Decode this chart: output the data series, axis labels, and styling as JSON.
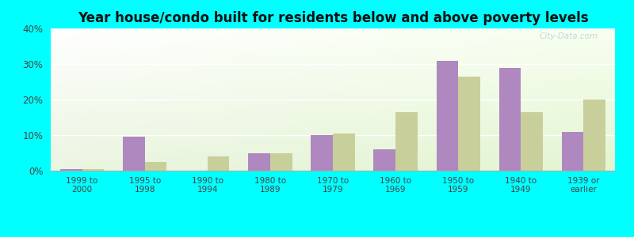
{
  "title": "Year house/condo built for residents below and above poverty levels",
  "categories": [
    "1999 to\n2000",
    "1995 to\n1998",
    "1990 to\n1994",
    "1980 to\n1989",
    "1970 to\n1979",
    "1960 to\n1969",
    "1950 to\n1959",
    "1940 to\n1949",
    "1939 or\nearlier"
  ],
  "below_poverty": [
    0.5,
    9.5,
    0.0,
    5.0,
    10.0,
    6.0,
    31.0,
    29.0,
    11.0
  ],
  "above_poverty": [
    0.5,
    2.5,
    4.0,
    5.0,
    10.5,
    16.5,
    26.5,
    16.5,
    20.0
  ],
  "below_color": "#b088c0",
  "above_color": "#c8cf9a",
  "fig_bg_color": "#00ffff",
  "title_fontsize": 12,
  "title_color": "#111111",
  "ylim": [
    0,
    40
  ],
  "yticks": [
    0,
    10,
    20,
    30,
    40
  ],
  "bar_width": 0.35,
  "watermark": "City-Data.com",
  "grid_color": "#e0e8e0",
  "spine_color": "#aaaaaa"
}
